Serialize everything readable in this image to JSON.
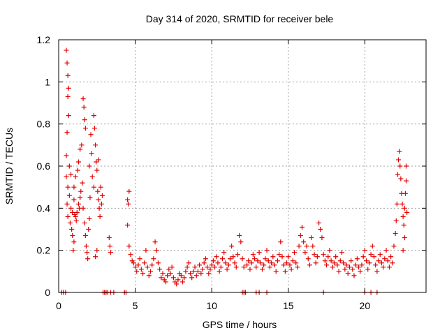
{
  "chart_data": {
    "type": "scatter",
    "title": "Day 314 of 2020, SRMTID for receiver bele",
    "xlabel": "GPS time / hours",
    "ylabel": "SRMTID / TECUs",
    "xlim": [
      0,
      24
    ],
    "ylim": [
      0,
      1.2
    ],
    "xticks": [
      0,
      5,
      10,
      15,
      20
    ],
    "xtick_labels": [
      "0",
      "5",
      "10",
      "15",
      "20"
    ],
    "yticks": [
      0,
      0.2,
      0.4,
      0.6,
      0.8,
      1,
      1.2
    ],
    "ytick_labels": [
      "0",
      "0.2",
      "0.4",
      "0.6",
      "0.8",
      "1",
      "1.2"
    ],
    "grid": true,
    "marker": "plus",
    "series": [
      {
        "name": "SRMTID",
        "color": "#e00000",
        "points": [
          [
            0.2,
            0.0
          ],
          [
            0.3,
            0.0
          ],
          [
            0.45,
            0.0
          ],
          [
            0.5,
            1.15
          ],
          [
            0.55,
            1.09
          ],
          [
            0.6,
            1.03
          ],
          [
            0.65,
            0.97
          ],
          [
            0.6,
            0.93
          ],
          [
            0.55,
            0.76
          ],
          [
            0.65,
            0.84
          ],
          [
            0.5,
            0.65
          ],
          [
            0.7,
            0.6
          ],
          [
            0.8,
            0.56
          ],
          [
            0.5,
            0.55
          ],
          [
            0.6,
            0.5
          ],
          [
            0.7,
            0.46
          ],
          [
            0.55,
            0.42
          ],
          [
            0.8,
            0.4
          ],
          [
            0.9,
            0.38
          ],
          [
            0.6,
            0.36
          ],
          [
            0.75,
            0.33
          ],
          [
            0.85,
            0.3
          ],
          [
            0.9,
            0.27
          ],
          [
            1.0,
            0.24
          ],
          [
            0.95,
            0.2
          ],
          [
            1.0,
            0.44
          ],
          [
            1.05,
            0.37
          ],
          [
            1.1,
            0.36
          ],
          [
            1.15,
            0.34
          ],
          [
            1.2,
            0.38
          ],
          [
            1.0,
            0.5
          ],
          [
            1.1,
            0.55
          ],
          [
            1.25,
            0.58
          ],
          [
            1.3,
            0.42
          ],
          [
            1.35,
            0.4
          ],
          [
            1.4,
            0.45
          ],
          [
            1.45,
            0.48
          ],
          [
            1.3,
            0.62
          ],
          [
            1.4,
            0.68
          ],
          [
            1.5,
            0.7
          ],
          [
            1.55,
            0.52
          ],
          [
            1.6,
            0.92
          ],
          [
            1.65,
            0.88
          ],
          [
            1.7,
            0.82
          ],
          [
            1.75,
            0.78
          ],
          [
            1.6,
            0.4
          ],
          [
            1.7,
            0.33
          ],
          [
            1.75,
            0.27
          ],
          [
            1.8,
            0.22
          ],
          [
            1.85,
            0.19
          ],
          [
            1.9,
            0.16
          ],
          [
            1.95,
            0.3
          ],
          [
            2.0,
            0.35
          ],
          [
            2.05,
            0.45
          ],
          [
            2.0,
            0.6
          ],
          [
            2.1,
            0.75
          ],
          [
            2.15,
            0.66
          ],
          [
            2.2,
            0.55
          ],
          [
            2.3,
            0.5
          ],
          [
            2.3,
            0.84
          ],
          [
            2.35,
            0.78
          ],
          [
            2.4,
            0.7
          ],
          [
            2.45,
            0.62
          ],
          [
            2.5,
            0.58
          ],
          [
            2.55,
            0.48
          ],
          [
            2.6,
            0.44
          ],
          [
            2.65,
            0.4
          ],
          [
            2.7,
            0.36
          ],
          [
            2.5,
            0.2
          ],
          [
            2.4,
            0.17
          ],
          [
            2.6,
            0.63
          ],
          [
            2.75,
            0.5
          ],
          [
            2.8,
            0.42
          ],
          [
            2.85,
            0.46
          ],
          [
            2.9,
            0.0
          ],
          [
            3.0,
            0.0
          ],
          [
            3.1,
            0.0
          ],
          [
            3.2,
            0.0
          ],
          [
            3.3,
            0.26
          ],
          [
            3.35,
            0.22
          ],
          [
            3.4,
            0.19
          ],
          [
            3.4,
            0.0
          ],
          [
            3.6,
            0.0
          ],
          [
            4.3,
            0.0
          ],
          [
            4.4,
            0.0
          ],
          [
            4.5,
            0.44
          ],
          [
            4.55,
            0.42
          ],
          [
            4.6,
            0.48
          ],
          [
            4.5,
            0.32
          ],
          [
            4.6,
            0.22
          ],
          [
            4.7,
            0.18
          ],
          [
            4.8,
            0.15
          ],
          [
            4.9,
            0.14
          ],
          [
            5.0,
            0.12
          ],
          [
            5.1,
            0.1
          ],
          [
            5.2,
            0.13
          ],
          [
            5.3,
            0.16
          ],
          [
            5.4,
            0.11
          ],
          [
            5.5,
            0.09
          ],
          [
            5.6,
            0.14
          ],
          [
            5.7,
            0.2
          ],
          [
            5.8,
            0.12
          ],
          [
            5.9,
            0.08
          ],
          [
            6.0,
            0.1
          ],
          [
            6.1,
            0.13
          ],
          [
            6.2,
            0.16
          ],
          [
            6.3,
            0.24
          ],
          [
            6.4,
            0.2
          ],
          [
            6.5,
            0.14
          ],
          [
            6.6,
            0.11
          ],
          [
            6.7,
            0.07
          ],
          [
            6.8,
            0.09
          ],
          [
            6.9,
            0.06
          ],
          [
            7.0,
            0.05
          ],
          [
            7.1,
            0.08
          ],
          [
            7.2,
            0.11
          ],
          [
            7.3,
            0.09
          ],
          [
            7.4,
            0.12
          ],
          [
            7.5,
            0.07
          ],
          [
            7.6,
            0.05
          ],
          [
            7.7,
            0.04
          ],
          [
            7.8,
            0.06
          ],
          [
            7.9,
            0.09
          ],
          [
            8.0,
            0.08
          ],
          [
            8.1,
            0.05
          ],
          [
            8.2,
            0.07
          ],
          [
            8.3,
            0.1
          ],
          [
            8.4,
            0.12
          ],
          [
            8.5,
            0.14
          ],
          [
            8.6,
            0.09
          ],
          [
            8.7,
            0.07
          ],
          [
            8.8,
            0.1
          ],
          [
            8.9,
            0.12
          ],
          [
            9.0,
            0.08
          ],
          [
            9.1,
            0.1
          ],
          [
            9.2,
            0.13
          ],
          [
            9.3,
            0.09
          ],
          [
            9.4,
            0.11
          ],
          [
            9.5,
            0.14
          ],
          [
            9.6,
            0.16
          ],
          [
            9.7,
            0.12
          ],
          [
            9.8,
            0.09
          ],
          [
            9.9,
            0.11
          ],
          [
            10.0,
            0.13
          ],
          [
            10.1,
            0.15
          ],
          [
            10.2,
            0.12
          ],
          [
            10.3,
            0.17
          ],
          [
            10.4,
            0.14
          ],
          [
            10.5,
            0.1
          ],
          [
            10.6,
            0.12
          ],
          [
            10.7,
            0.16
          ],
          [
            10.8,
            0.19
          ],
          [
            10.9,
            0.14
          ],
          [
            11.0,
            0.11
          ],
          [
            11.1,
            0.13
          ],
          [
            11.2,
            0.16
          ],
          [
            11.3,
            0.22
          ],
          [
            11.4,
            0.17
          ],
          [
            11.5,
            0.14
          ],
          [
            11.6,
            0.12
          ],
          [
            11.7,
            0.18
          ],
          [
            11.8,
            0.27
          ],
          [
            11.9,
            0.24
          ],
          [
            12.0,
            0.16
          ],
          [
            12.1,
            0.12
          ],
          [
            12.0,
            0.0
          ],
          [
            12.1,
            0.0
          ],
          [
            12.2,
            0.0
          ],
          [
            12.3,
            0.13
          ],
          [
            12.4,
            0.15
          ],
          [
            12.5,
            0.11
          ],
          [
            12.6,
            0.14
          ],
          [
            12.7,
            0.18
          ],
          [
            12.8,
            0.16
          ],
          [
            12.9,
            0.12
          ],
          [
            13.0,
            0.15
          ],
          [
            13.1,
            0.19
          ],
          [
            13.2,
            0.14
          ],
          [
            13.3,
            0.11
          ],
          [
            13.4,
            0.13
          ],
          [
            13.5,
            0.16
          ],
          [
            13.6,
            0.2
          ],
          [
            13.7,
            0.15
          ],
          [
            13.8,
            0.12
          ],
          [
            13.9,
            0.14
          ],
          [
            14.0,
            0.17
          ],
          [
            14.1,
            0.13
          ],
          [
            14.2,
            0.1
          ],
          [
            14.3,
            0.15
          ],
          [
            14.4,
            0.18
          ],
          [
            14.5,
            0.24
          ],
          [
            14.6,
            0.17
          ],
          [
            14.7,
            0.13
          ],
          [
            14.8,
            0.1
          ],
          [
            14.9,
            0.14
          ],
          [
            15.0,
            0.17
          ],
          [
            15.1,
            0.13
          ],
          [
            15.2,
            0.11
          ],
          [
            15.3,
            0.15
          ],
          [
            15.4,
            0.19
          ],
          [
            15.5,
            0.14
          ],
          [
            15.6,
            0.12
          ],
          [
            15.7,
            0.22
          ],
          [
            15.8,
            0.27
          ],
          [
            15.9,
            0.31
          ],
          [
            16.0,
            0.24
          ],
          [
            16.1,
            0.19
          ],
          [
            16.2,
            0.22
          ],
          [
            16.3,
            0.16
          ],
          [
            16.4,
            0.13
          ],
          [
            16.5,
            0.26
          ],
          [
            16.6,
            0.22
          ],
          [
            16.7,
            0.18
          ],
          [
            16.8,
            0.14
          ],
          [
            16.9,
            0.17
          ],
          [
            17.0,
            0.33
          ],
          [
            17.1,
            0.3
          ],
          [
            17.2,
            0.26
          ],
          [
            12.9,
            0.0
          ],
          [
            13.1,
            0.0
          ],
          [
            13.6,
            0.0
          ],
          [
            17.3,
            0.0
          ],
          [
            17.3,
            0.18
          ],
          [
            17.4,
            0.15
          ],
          [
            17.5,
            0.13
          ],
          [
            17.6,
            0.17
          ],
          [
            17.7,
            0.2
          ],
          [
            17.8,
            0.15
          ],
          [
            17.9,
            0.12
          ],
          [
            18.0,
            0.14
          ],
          [
            18.1,
            0.17
          ],
          [
            18.2,
            0.13
          ],
          [
            18.3,
            0.1
          ],
          [
            18.4,
            0.15
          ],
          [
            18.5,
            0.19
          ],
          [
            18.6,
            0.14
          ],
          [
            18.7,
            0.11
          ],
          [
            18.8,
            0.13
          ],
          [
            18.9,
            0.09
          ],
          [
            19.0,
            0.12
          ],
          [
            19.1,
            0.15
          ],
          [
            19.2,
            0.11
          ],
          [
            19.3,
            0.08
          ],
          [
            19.4,
            0.13
          ],
          [
            19.5,
            0.16
          ],
          [
            19.6,
            0.12
          ],
          [
            19.7,
            0.1
          ],
          [
            19.8,
            0.13
          ],
          [
            19.9,
            0.17
          ],
          [
            20.0,
            0.2
          ],
          [
            20.1,
            0.15
          ],
          [
            20.2,
            0.11
          ],
          [
            20.3,
            0.14
          ],
          [
            20.4,
            0.18
          ],
          [
            20.5,
            0.22
          ],
          [
            20.6,
            0.17
          ],
          [
            20.7,
            0.13
          ],
          [
            20.8,
            0.1
          ],
          [
            20.9,
            0.15
          ],
          [
            21.0,
            0.18
          ],
          [
            21.1,
            0.14
          ],
          [
            21.2,
            0.12
          ],
          [
            21.3,
            0.16
          ],
          [
            21.4,
            0.2
          ],
          [
            21.5,
            0.15
          ],
          [
            21.6,
            0.12
          ],
          [
            21.7,
            0.17
          ],
          [
            21.8,
            0.14
          ],
          [
            20.0,
            0.0
          ],
          [
            20.4,
            0.0
          ],
          [
            20.8,
            0.0
          ],
          [
            21.9,
            0.22
          ],
          [
            22.0,
            0.28
          ],
          [
            22.05,
            0.34
          ],
          [
            22.1,
            0.42
          ],
          [
            22.15,
            0.56
          ],
          [
            22.2,
            0.63
          ],
          [
            22.25,
            0.67
          ],
          [
            22.3,
            0.6
          ],
          [
            22.35,
            0.54
          ],
          [
            22.4,
            0.47
          ],
          [
            22.45,
            0.42
          ],
          [
            22.5,
            0.36
          ],
          [
            22.55,
            0.32
          ],
          [
            22.6,
            0.4
          ],
          [
            22.65,
            0.47
          ],
          [
            22.7,
            0.53
          ],
          [
            22.6,
            0.26
          ],
          [
            22.5,
            0.2
          ],
          [
            22.7,
            0.6
          ],
          [
            22.75,
            0.38
          ]
        ]
      }
    ]
  }
}
